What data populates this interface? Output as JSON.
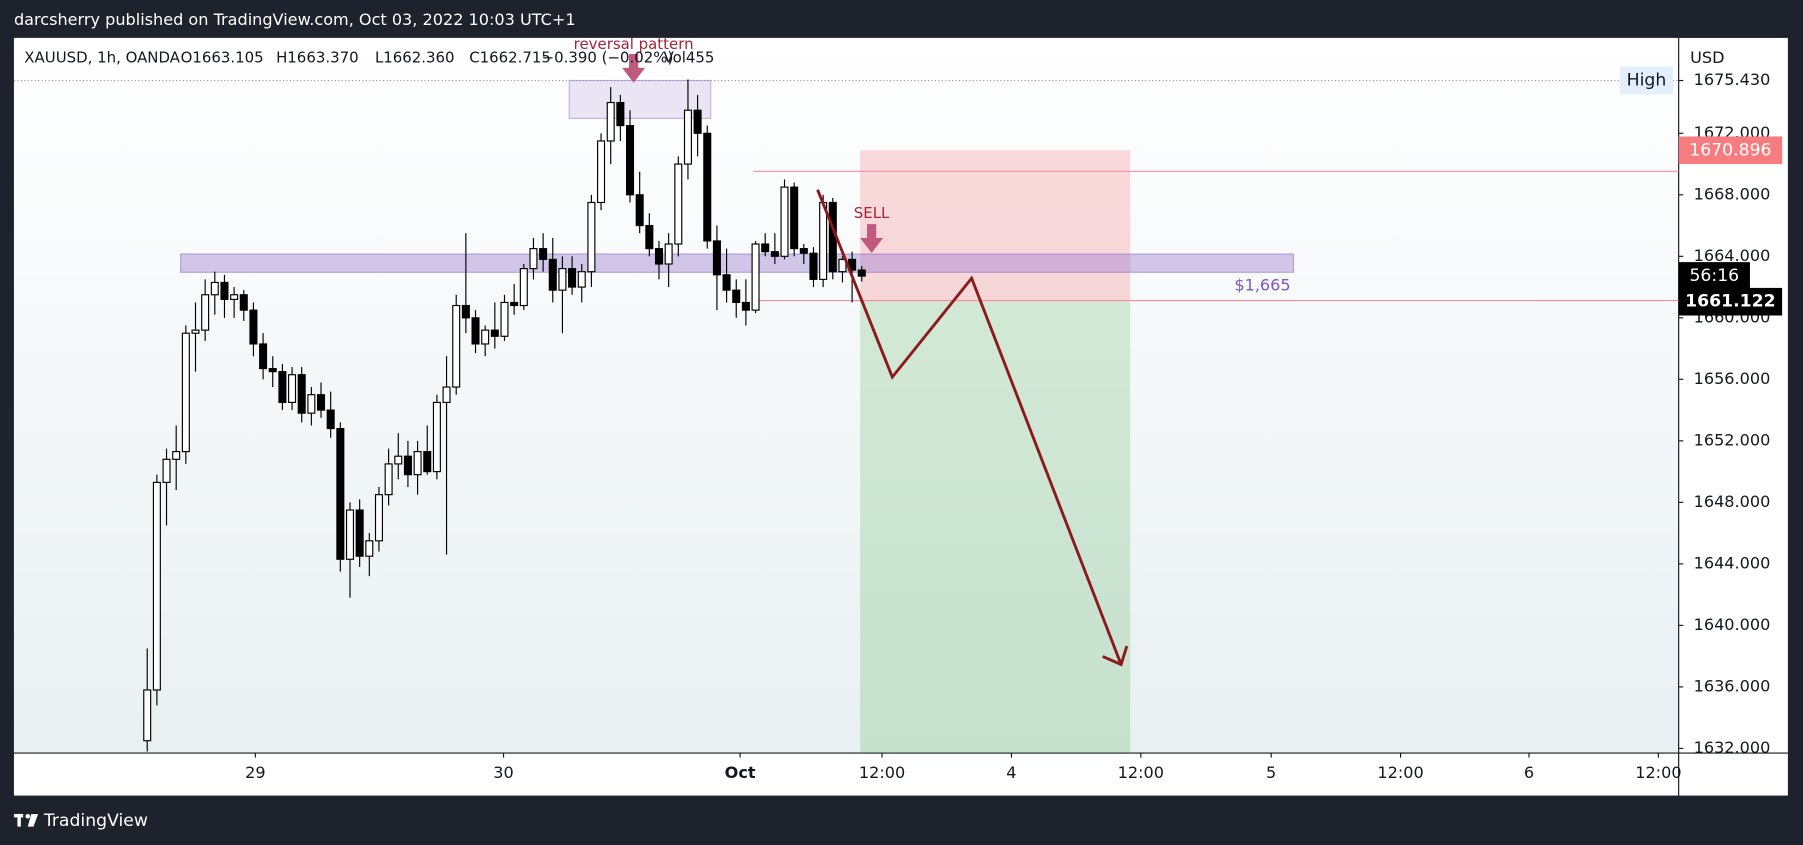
{
  "header": "darcsherry published on TradingView.com, Oct 03, 2022 10:03 UTC+1",
  "footer": "TradingView",
  "chart_data": {
    "type": "candlestick",
    "legend": {
      "symbol": "XAUUSD, 1h, OANDA",
      "open": "O1663.105",
      "high": "H1663.370",
      "low": "L1662.360",
      "close": "C1662.715",
      "change": "−0.390 (−0.02%)",
      "volume": "Vol455"
    },
    "currency": "USD",
    "open": [
      1632.5,
      1635.8,
      1649.3,
      1650.8,
      1651.3,
      1659.0,
      1659.2,
      1661.5,
      1662.3,
      1661.2,
      1661.5,
      1660.5,
      1658.3,
      1656.7,
      1656.5,
      1654.5,
      1656.3,
      1653.8,
      1655.0,
      1654.0,
      1652.8,
      1644.3,
      1647.5,
      1644.5,
      1645.5,
      1648.5,
      1650.5,
      1651.0,
      1649.8,
      1651.3,
      1650.0,
      1654.5,
      1655.5,
      1660.8,
      1660.0,
      1658.3,
      1659.2,
      1658.8,
      1661.0,
      1660.8,
      1663.2,
      1664.5,
      1663.8,
      1661.8,
      1663.2,
      1662.0,
      1663.0,
      1667.5,
      1671.5,
      1674.0,
      1672.5,
      1668.0,
      1666.0,
      1664.5,
      1663.5,
      1664.8,
      1670.0,
      1673.5,
      1672.0,
      1665.0,
      1662.8,
      1661.8,
      1661.0,
      1660.5,
      1664.8,
      1664.3,
      1664.0,
      1668.5,
      1664.5,
      1664.2,
      1662.5,
      1667.5,
      1663.0,
      1663.8,
      1663.105
    ],
    "high": [
      1638.5,
      1649.8,
      1651.5,
      1653.0,
      1659.5,
      1661.0,
      1662.5,
      1663.0,
      1662.8,
      1662.0,
      1661.8,
      1661.0,
      1659.0,
      1657.5,
      1657.0,
      1656.8,
      1656.8,
      1655.5,
      1655.8,
      1655.2,
      1653.2,
      1648.0,
      1648.2,
      1646.0,
      1649.0,
      1651.5,
      1652.5,
      1652.0,
      1652.0,
      1653.0,
      1655.0,
      1657.5,
      1661.5,
      1665.5,
      1660.5,
      1659.5,
      1661.0,
      1661.5,
      1662.2,
      1663.5,
      1665.2,
      1665.5,
      1665.2,
      1664.0,
      1664.0,
      1663.5,
      1668.0,
      1672.0,
      1675.0,
      1674.5,
      1673.5,
      1669.5,
      1666.8,
      1665.0,
      1665.5,
      1670.5,
      1675.5,
      1674.5,
      1672.5,
      1666.0,
      1664.5,
      1662.5,
      1662.5,
      1665.0,
      1665.5,
      1665.5,
      1669.0,
      1668.8,
      1664.8,
      1664.6,
      1668.0,
      1667.8,
      1664.0,
      1664.3,
      1663.37
    ],
    "low": [
      1631.8,
      1634.8,
      1646.5,
      1648.8,
      1650.5,
      1656.5,
      1658.5,
      1660.2,
      1660.0,
      1660.0,
      1659.8,
      1657.5,
      1656.0,
      1655.5,
      1654.0,
      1654.0,
      1653.2,
      1653.0,
      1653.5,
      1652.2,
      1643.5,
      1641.8,
      1643.8,
      1643.2,
      1644.8,
      1647.8,
      1649.5,
      1649.0,
      1648.5,
      1649.8,
      1649.5,
      1644.6,
      1655.0,
      1659.0,
      1657.7,
      1657.5,
      1658.0,
      1658.5,
      1660.2,
      1660.5,
      1662.5,
      1663.0,
      1661.0,
      1659.0,
      1661.5,
      1661.0,
      1662.0,
      1667.0,
      1670.0,
      1671.5,
      1667.5,
      1665.5,
      1664.0,
      1662.5,
      1662.0,
      1664.0,
      1669.0,
      1670.5,
      1664.5,
      1660.5,
      1661.0,
      1660.0,
      1659.5,
      1660.3,
      1664.0,
      1663.5,
      1663.8,
      1664.0,
      1663.5,
      1662.0,
      1662.0,
      1662.5,
      1662.3,
      1661.0,
      1662.36
    ],
    "close": [
      1635.8,
      1649.3,
      1650.8,
      1651.3,
      1659.0,
      1659.2,
      1661.5,
      1662.3,
      1661.2,
      1661.5,
      1660.5,
      1658.3,
      1656.7,
      1656.5,
      1654.5,
      1656.3,
      1653.8,
      1655.0,
      1654.0,
      1652.8,
      1644.3,
      1647.5,
      1644.5,
      1645.5,
      1648.5,
      1650.5,
      1651.0,
      1649.8,
      1651.3,
      1650.0,
      1654.5,
      1655.5,
      1660.8,
      1660.0,
      1658.3,
      1659.2,
      1658.8,
      1661.0,
      1660.8,
      1663.2,
      1664.5,
      1663.8,
      1661.8,
      1663.2,
      1662.0,
      1663.0,
      1667.5,
      1671.5,
      1674.0,
      1672.5,
      1668.0,
      1666.0,
      1664.5,
      1663.5,
      1664.8,
      1670.0,
      1673.5,
      1672.0,
      1665.0,
      1662.8,
      1661.8,
      1661.0,
      1660.5,
      1664.8,
      1664.3,
      1664.0,
      1668.5,
      1664.5,
      1664.2,
      1662.5,
      1667.5,
      1663.0,
      1663.8,
      1663.105,
      1662.715
    ],
    "up_color": "#ffffff",
    "down_color": "#000000",
    "xlim": [
      -13.8,
      158.6
    ],
    "xticks": [
      {
        "value": 11.2,
        "label": "29"
      },
      {
        "value": 36.9,
        "label": "30"
      },
      {
        "value": 61.4,
        "label": "Oct"
      },
      {
        "value": 76.1,
        "label": "12:00"
      },
      {
        "value": 89.5,
        "label": "4"
      },
      {
        "value": 102.9,
        "label": "12:00"
      },
      {
        "value": 116.4,
        "label": "5"
      },
      {
        "value": 129.8,
        "label": "12:00"
      },
      {
        "value": 143.1,
        "label": "6"
      },
      {
        "value": 156.5,
        "label": "12:00"
      }
    ],
    "ylim": [
      1631.7,
      1678.2
    ],
    "yticks": [
      {
        "value": 1632,
        "label": "1632.000"
      },
      {
        "value": 1636,
        "label": "1636.000"
      },
      {
        "value": 1640,
        "label": "1640.000"
      },
      {
        "value": 1644,
        "label": "1644.000"
      },
      {
        "value": 1648,
        "label": "1648.000"
      },
      {
        "value": 1652,
        "label": "1652.000"
      },
      {
        "value": 1656,
        "label": "1656.000"
      },
      {
        "value": 1660,
        "label": "1660.000"
      },
      {
        "value": 1664,
        "label": "1664.000"
      },
      {
        "value": 1668,
        "label": "1668.000"
      },
      {
        "value": 1672,
        "label": "1672.000"
      },
      {
        "value": 1675.43,
        "label": "1675.430"
      }
    ],
    "high_marker": {
      "label": "High",
      "value": 1675.43
    },
    "zone": {
      "label": "$1,665",
      "top": 1664.15,
      "bottom": 1662.96
    },
    "position": {
      "stop": {
        "value": 1670.896,
        "label": "1670.896"
      },
      "entry": {
        "value": 1661.122,
        "label": "1661.122"
      }
    },
    "countdown": "56:16",
    "annotations": {
      "pattern": "reversal pattern",
      "signal": "SELL"
    }
  }
}
